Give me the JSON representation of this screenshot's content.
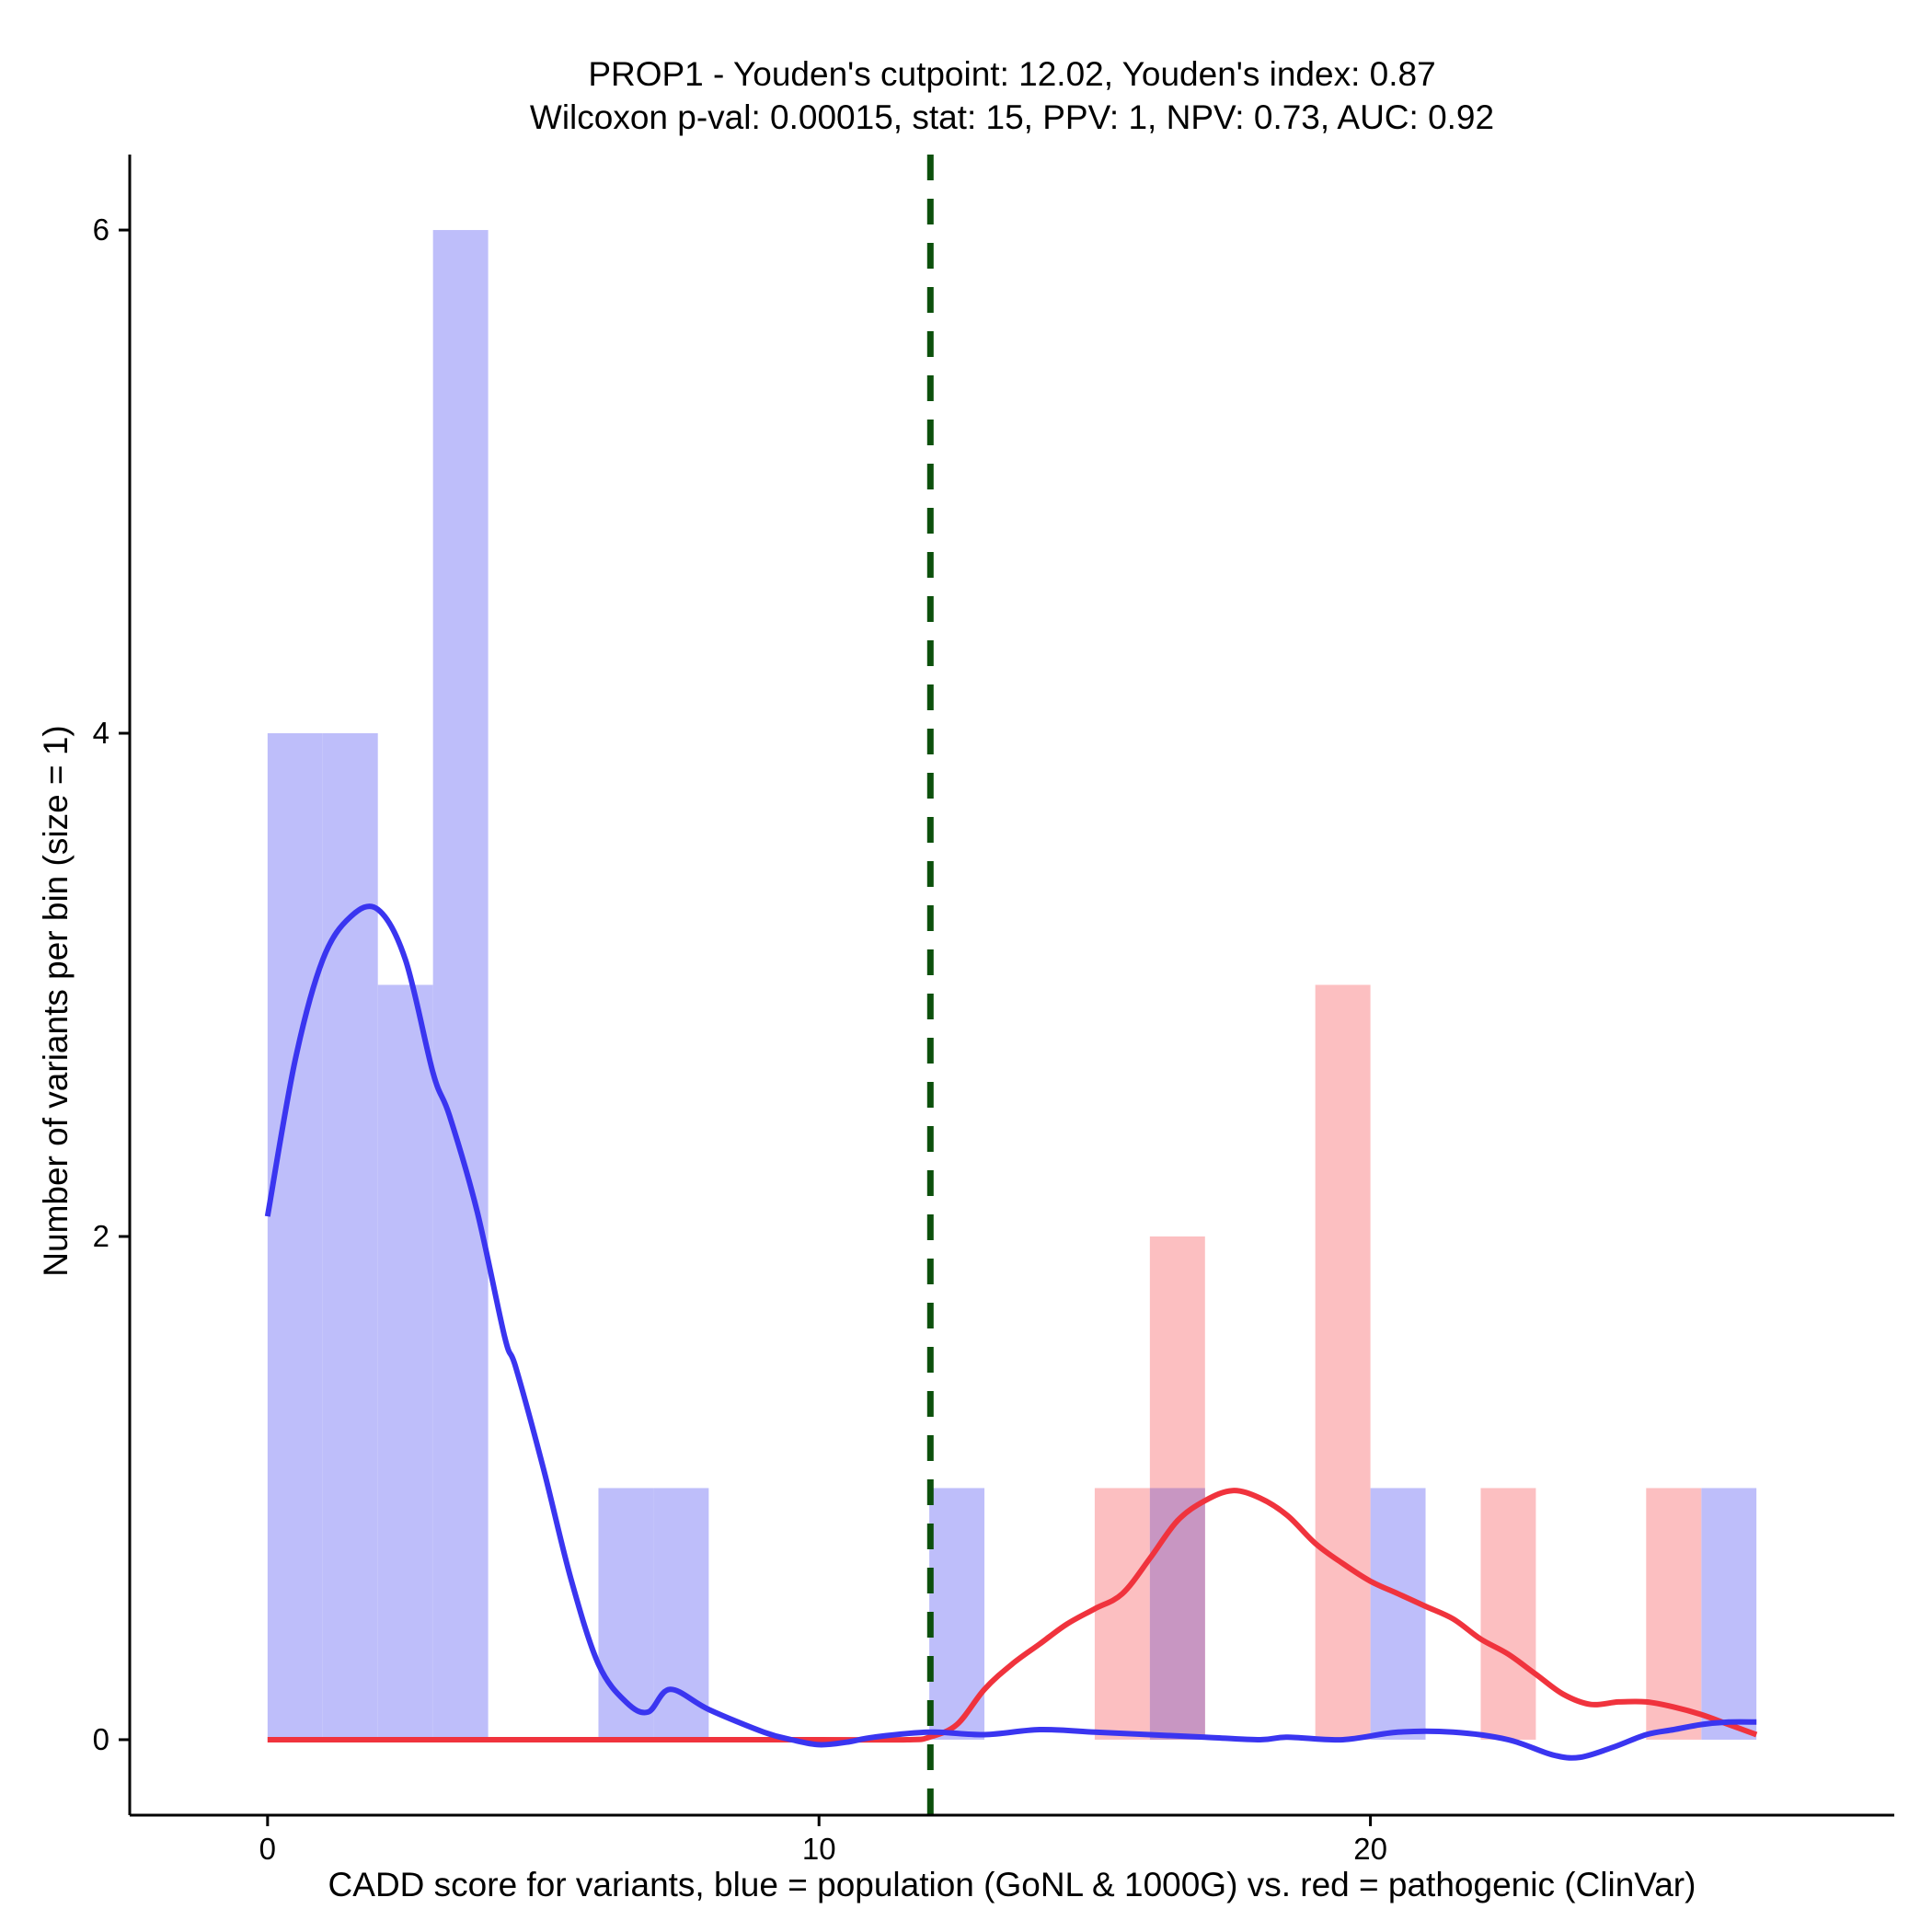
{
  "chart_data": {
    "type": "histogram",
    "title_line1": "PROP1 - Youden's cutpoint: 12.02, Youden's index: 0.87",
    "title_line2": "Wilcoxon p-val: 0.00015, stat: 15, PPV: 1, NPV: 0.73, AUC: 0.92",
    "xlabel": "CADD score for variants, blue = population (GoNL & 1000G) vs. red = pathogenic (ClinVar)",
    "ylabel": "Number of variants per bin (size = 1)",
    "xlim": [
      -2.5,
      29.5
    ],
    "ylim": [
      -0.3,
      6.3
    ],
    "x_ticks": [
      0,
      10,
      20
    ],
    "x_tick_labels": [
      "0",
      "10",
      "20"
    ],
    "y_ticks": [
      0,
      2,
      4,
      6
    ],
    "y_tick_labels": [
      "0",
      "2",
      "4",
      "6"
    ],
    "cutpoint": 12.02,
    "colors": {
      "population_bar": "#bebefa",
      "pathogenic_bar": "#fcbfc1",
      "overlap_bar": "#c896c2",
      "population_line": "#3a35f0",
      "pathogenic_line": "#f0333d",
      "cutpoint_line": "#0c500c"
    },
    "series": [
      {
        "name": "population",
        "bins": [
          {
            "x0": 0,
            "x1": 1,
            "count": 4
          },
          {
            "x0": 1,
            "x1": 2,
            "count": 4
          },
          {
            "x0": 2,
            "x1": 3,
            "count": 3
          },
          {
            "x0": 3,
            "x1": 4,
            "count": 6
          },
          {
            "x0": 6,
            "x1": 7,
            "count": 1
          },
          {
            "x0": 7,
            "x1": 8,
            "count": 1
          },
          {
            "x0": 12,
            "x1": 13,
            "count": 1
          },
          {
            "x0": 16,
            "x1": 17,
            "count": 1
          },
          {
            "x0": 20,
            "x1": 21,
            "count": 1
          },
          {
            "x0": 26,
            "x1": 27,
            "count": 1
          }
        ],
        "density": {
          "x": [
            0,
            0.5,
            1,
            1.5,
            2,
            2.5,
            3,
            3.3,
            3.8,
            4.3,
            4.5,
            5,
            5.5,
            6,
            6.5,
            6.9,
            7.3,
            8,
            9,
            9.5,
            10,
            10.5,
            11,
            12,
            13,
            14,
            15,
            16,
            17,
            18,
            18.5,
            19.5,
            20.5,
            21.5,
            22.5,
            23.3,
            23.8,
            24.4,
            25,
            25.5,
            26,
            26.5,
            27
          ],
          "y": [
            2.08,
            2.7,
            3.1,
            3.27,
            3.3,
            3.1,
            2.65,
            2.48,
            2.1,
            1.6,
            1.48,
            1.08,
            0.64,
            0.3,
            0.15,
            0.11,
            0.2,
            0.12,
            0.03,
            0.0,
            -0.02,
            -0.01,
            0.01,
            0.03,
            0.02,
            0.04,
            0.03,
            0.02,
            0.01,
            0.0,
            0.01,
            0.0,
            0.03,
            0.03,
            0.0,
            -0.06,
            -0.07,
            -0.03,
            0.02,
            0.04,
            0.06,
            0.07,
            0.07
          ]
        }
      },
      {
        "name": "pathogenic",
        "bins": [
          {
            "x0": 15,
            "x1": 16,
            "count": 1
          },
          {
            "x0": 16,
            "x1": 17,
            "count": 2
          },
          {
            "x0": 19,
            "x1": 20,
            "count": 3
          },
          {
            "x0": 22,
            "x1": 23,
            "count": 1
          },
          {
            "x0": 25,
            "x1": 26,
            "count": 1
          }
        ],
        "density": {
          "x": [
            0,
            5,
            10,
            11.6,
            12,
            12.5,
            13,
            13.5,
            14,
            14.5,
            15,
            15.5,
            16,
            16.5,
            17,
            17.5,
            18,
            18.5,
            19,
            19.5,
            20,
            20.5,
            21,
            21.5,
            22,
            22.5,
            23,
            23.5,
            24,
            24.5,
            25,
            25.5,
            26,
            26.5,
            27
          ],
          "y": [
            0,
            0,
            0,
            0,
            0.01,
            0.06,
            0.2,
            0.3,
            0.38,
            0.46,
            0.52,
            0.58,
            0.72,
            0.87,
            0.95,
            0.99,
            0.96,
            0.89,
            0.78,
            0.7,
            0.63,
            0.58,
            0.53,
            0.48,
            0.4,
            0.34,
            0.26,
            0.18,
            0.14,
            0.15,
            0.15,
            0.13,
            0.1,
            0.06,
            0.02
          ]
        }
      }
    ]
  }
}
